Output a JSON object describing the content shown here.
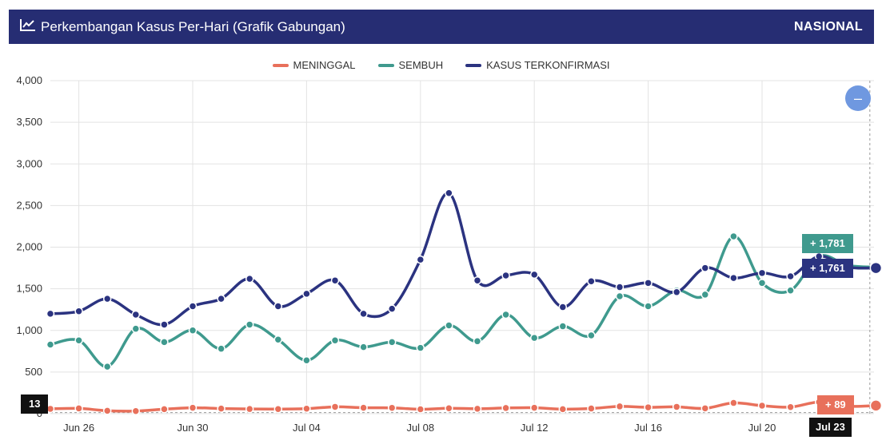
{
  "header": {
    "title": "Perkembangan Kasus Per-Hari (Grafik Gabungan)",
    "region": "NASIONAL",
    "icon": "chart-line-icon",
    "bg_color": "#262d73"
  },
  "zoom_button": {
    "icon": "minus-icon",
    "label": "–"
  },
  "tooltip": {
    "sembuh_label": "+ 1,781",
    "kasus_label": "+ 1,761",
    "meninggal_label": "+ 89",
    "date_label": "Jul 23",
    "left_value_label": "13"
  },
  "chart_data": {
    "type": "line",
    "x": [
      "Jun 25",
      "Jun 26",
      "Jun 27",
      "Jun 28",
      "Jun 29",
      "Jun 30",
      "Jul 01",
      "Jul 02",
      "Jul 03",
      "Jul 04",
      "Jul 05",
      "Jul 06",
      "Jul 07",
      "Jul 08",
      "Jul 09",
      "Jul 10",
      "Jul 11",
      "Jul 12",
      "Jul 13",
      "Jul 14",
      "Jul 15",
      "Jul 16",
      "Jul 17",
      "Jul 18",
      "Jul 19",
      "Jul 20",
      "Jul 21",
      "Jul 22",
      "Jul 23",
      "Jul 24"
    ],
    "xticks": [
      "Jun 26",
      "Jun 30",
      "Jul 04",
      "Jul 08",
      "Jul 12",
      "Jul 16",
      "Jul 20"
    ],
    "yticks": [
      0,
      500,
      1000,
      1500,
      2000,
      2500,
      3000,
      3500,
      4000
    ],
    "ylim": [
      0,
      4000
    ],
    "grid": true,
    "legend_position": "top-center",
    "series": [
      {
        "name": "MENINGGAL",
        "color": "#e8705b",
        "values": [
          58,
          63,
          35,
          31,
          54,
          71,
          61,
          56,
          55,
          60,
          82,
          71,
          70,
          53,
          65,
          59,
          68,
          71,
          54,
          62,
          87,
          76,
          82,
          64,
          129,
          96,
          79,
          139,
          89,
          97
        ]
      },
      {
        "name": "SEMBUH",
        "color": "#3f9a8e",
        "values": [
          830,
          880,
          565,
          1020,
          860,
          1000,
          780,
          1070,
          890,
          640,
          880,
          800,
          860,
          790,
          1060,
          870,
          1190,
          910,
          1050,
          940,
          1410,
          1290,
          1480,
          1430,
          2130,
          1570,
          1480,
          1890,
          1781,
          1760
        ]
      },
      {
        "name": "KASUS TERKONFIRMASI",
        "color": "#2b3380",
        "values": [
          1200,
          1230,
          1380,
          1190,
          1070,
          1290,
          1380,
          1620,
          1290,
          1440,
          1600,
          1200,
          1260,
          1850,
          2650,
          1600,
          1660,
          1670,
          1280,
          1590,
          1520,
          1570,
          1460,
          1750,
          1630,
          1690,
          1650,
          1890,
          1761,
          1750
        ]
      }
    ]
  }
}
